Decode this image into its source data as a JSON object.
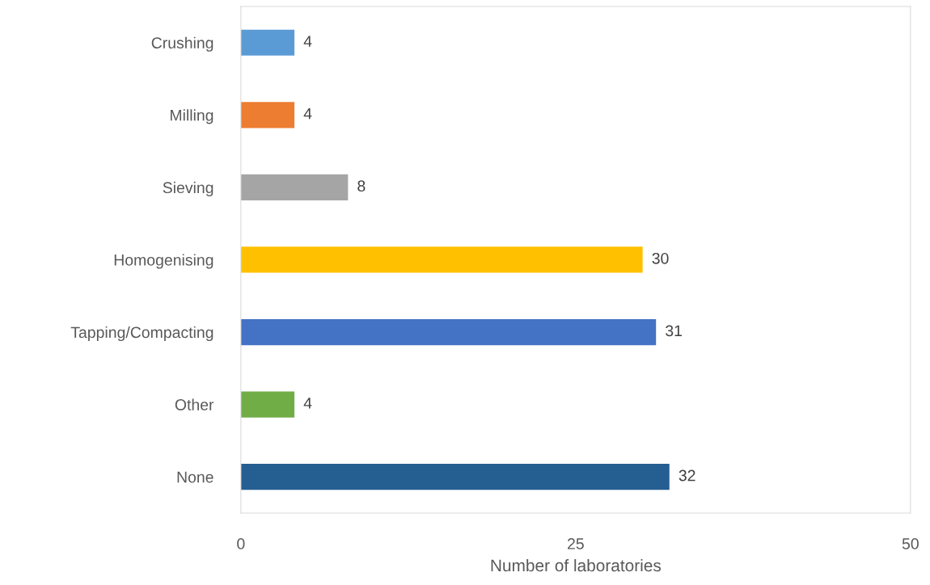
{
  "chart_data": {
    "type": "bar",
    "orientation": "horizontal",
    "xlabel": "Number of laboratories",
    "categories": [
      "Crushing",
      "Milling",
      "Sieving",
      "Homogenising",
      "Tapping/Compacting",
      "Other",
      "None"
    ],
    "values": [
      4,
      4,
      8,
      30,
      31,
      4,
      32
    ],
    "colors": [
      "#5b9bd5",
      "#ed7d31",
      "#a5a5a5",
      "#ffc000",
      "#4472c4",
      "#70ad47",
      "#255e91"
    ],
    "xlim": [
      0,
      50
    ],
    "xticks": [
      0,
      25,
      50
    ],
    "grid": false,
    "data_labels": true
  }
}
